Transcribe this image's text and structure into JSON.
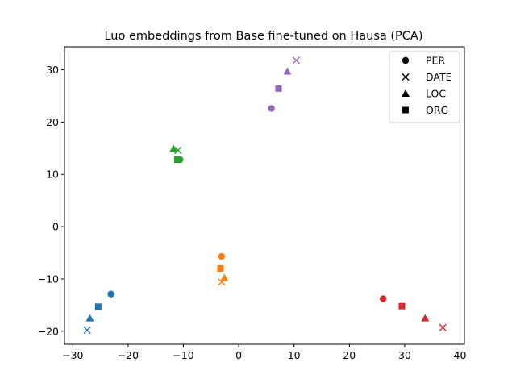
{
  "chart_data": {
    "type": "scatter",
    "title": "Luo embeddings from Base fine-tuned on Hausa (PCA)",
    "xlabel": "",
    "ylabel": "",
    "xlim": [
      -31.5,
      40.8
    ],
    "ylim": [
      -22.5,
      34.4
    ],
    "xticks": [
      -30,
      -20,
      -10,
      0,
      10,
      20,
      30,
      40
    ],
    "yticks": [
      -20,
      -10,
      0,
      10,
      20,
      30
    ],
    "grid": false,
    "legend": {
      "placement": "top-right",
      "entries": [
        {
          "label": "PER",
          "marker": "circle"
        },
        {
          "label": "DATE",
          "marker": "x"
        },
        {
          "label": "LOC",
          "marker": "triangle"
        },
        {
          "label": "ORG",
          "marker": "square"
        }
      ]
    },
    "groups": [
      {
        "color": "#1f77b4",
        "points": [
          {
            "entity": "PER",
            "x": -23.1,
            "y": -12.9
          },
          {
            "entity": "DATE",
            "x": -27.4,
            "y": -19.8
          },
          {
            "entity": "LOC",
            "x": -26.9,
            "y": -17.5
          },
          {
            "entity": "ORG",
            "x": -25.4,
            "y": -15.3
          }
        ]
      },
      {
        "color": "#ff7f0e",
        "points": [
          {
            "entity": "PER",
            "x": -3.1,
            "y": -5.7
          },
          {
            "entity": "DATE",
            "x": -3.1,
            "y": -10.6
          },
          {
            "entity": "LOC",
            "x": -2.6,
            "y": -9.8
          },
          {
            "entity": "ORG",
            "x": -3.3,
            "y": -8.0
          }
        ]
      },
      {
        "color": "#2ca02c",
        "points": [
          {
            "entity": "PER",
            "x": -10.6,
            "y": 12.8
          },
          {
            "entity": "DATE",
            "x": -11.0,
            "y": 14.6
          },
          {
            "entity": "LOC",
            "x": -11.8,
            "y": 14.9
          },
          {
            "entity": "ORG",
            "x": -11.1,
            "y": 12.8
          }
        ]
      },
      {
        "color": "#9467bd",
        "points": [
          {
            "entity": "PER",
            "x": 5.9,
            "y": 22.6
          },
          {
            "entity": "DATE",
            "x": 10.4,
            "y": 31.8
          },
          {
            "entity": "LOC",
            "x": 8.8,
            "y": 29.7
          },
          {
            "entity": "ORG",
            "x": 7.2,
            "y": 26.4
          }
        ]
      },
      {
        "color": "#d62728",
        "points": [
          {
            "entity": "PER",
            "x": 26.1,
            "y": -13.8
          },
          {
            "entity": "DATE",
            "x": 36.9,
            "y": -19.3
          },
          {
            "entity": "LOC",
            "x": 33.7,
            "y": -17.5
          },
          {
            "entity": "ORG",
            "x": 29.5,
            "y": -15.2
          }
        ]
      }
    ]
  }
}
